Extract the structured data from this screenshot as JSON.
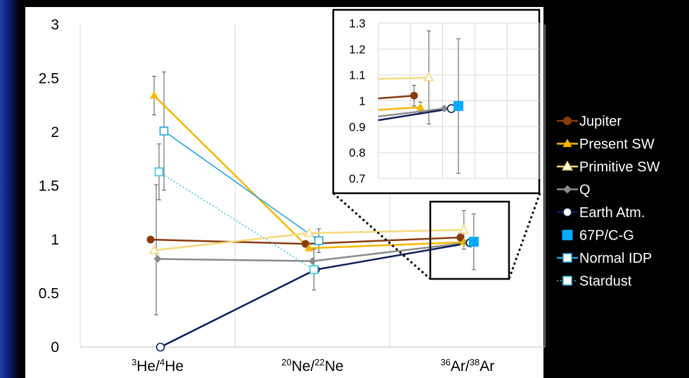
{
  "chart_data": {
    "type": "line",
    "title": "",
    "xlabel": "",
    "ylabel": "",
    "categories": [
      {
        "base": "He",
        "sup1": "3",
        "sup2": "4"
      },
      {
        "base": "Ne",
        "sup1": "20",
        "sup2": "22"
      },
      {
        "base": "Ar",
        "sup1": "36",
        "sup2": "38"
      }
    ],
    "ylim": [
      0,
      3
    ],
    "yticks": [
      "0",
      "0.5",
      "1",
      "1.5",
      "2",
      "2.5",
      "3"
    ],
    "grid": "vertical",
    "legend_position": "right",
    "series": [
      {
        "name": "Jupiter",
        "color": "#8b3a0f",
        "marker": "circle-filled",
        "dash": false,
        "values": [
          1.0,
          0.96,
          1.02
        ],
        "err": [
          null,
          null,
          0.04
        ]
      },
      {
        "name": "Present SW",
        "color": "#f5b800",
        "marker": "triangle-filled",
        "dash": false,
        "values": [
          2.34,
          0.92,
          0.975
        ],
        "err": [
          0.18,
          null,
          0.02
        ]
      },
      {
        "name": "Primitive SW",
        "color": "#f6d97a",
        "marker": "triangle-open",
        "dash": false,
        "values": [
          0.9,
          1.06,
          1.09
        ],
        "err": [
          null,
          null,
          0.18
        ]
      },
      {
        "name": "Q",
        "color": "#8a8a8a",
        "marker": "diamond-filled",
        "dash": false,
        "values": [
          0.82,
          0.8,
          0.97
        ],
        "err": [
          null,
          null,
          null
        ]
      },
      {
        "name": "Earth Atm.",
        "color": "#0d1f5c",
        "marker": "circle-open",
        "dash": false,
        "values": [
          0.0,
          0.72,
          0.97
        ],
        "err": [
          null,
          null,
          null
        ]
      },
      {
        "name": "67P/C-G",
        "color": "#00aaff",
        "marker": "square-filled",
        "dash": false,
        "values": [
          null,
          null,
          0.98
        ],
        "err": [
          null,
          null,
          0.26
        ]
      },
      {
        "name": "Normal IDP",
        "color": "#22a6e0",
        "marker": "square-open",
        "dash": false,
        "values": [
          2.01,
          0.99,
          null
        ],
        "err": [
          0.55,
          0.11,
          null
        ]
      },
      {
        "name": "Stardust",
        "color": "#3cc8e0",
        "marker": "square-open",
        "dash": true,
        "values": [
          1.63,
          0.72,
          null
        ],
        "err": [
          0.26,
          0.19,
          null
        ]
      }
    ],
    "extra_errorbars": [
      {
        "category": 0,
        "value": 0.9,
        "low": 0.3,
        "high": 1.51
      }
    ],
    "inset": {
      "ylim": [
        0.7,
        1.3
      ],
      "yticks": [
        "0.7",
        "0.8",
        "0.9",
        "1",
        "1.1",
        "1.2",
        "1.3"
      ],
      "zoom_of_category": 2
    }
  }
}
